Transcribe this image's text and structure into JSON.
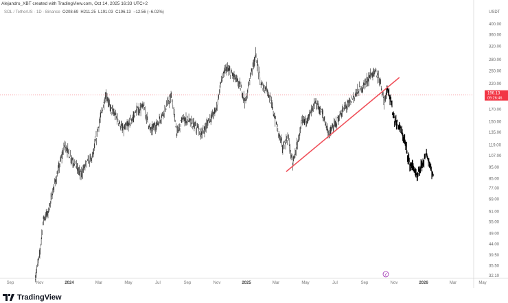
{
  "header": {
    "credit": "Alejandro_XBT created with TradingView.com, Oct 14, 2025 16:33 UTC+2",
    "symbol": "SOL / TetherUS · 1D · Binance",
    "open": "O208.69",
    "high": "H211.25",
    "low": "L191.03",
    "close": "C196.13",
    "change": "−12.56 (−6.02%)"
  },
  "branding": {
    "name": "TradingView",
    "icon": "tradingview-logo-icon"
  },
  "colors": {
    "trendline": "#f0505a",
    "price_tag": "#f23645",
    "bars": "#222222",
    "marker": "#9c27b0"
  },
  "chart_data": {
    "type": "line",
    "title": "",
    "scale": "log",
    "y_unit": "USDT",
    "ylim": [
      32.1,
      400
    ],
    "xlim": [
      "2023-08-10",
      "2026-05-20"
    ],
    "grid": false,
    "y_ticks": [
      "400.00",
      "360.00",
      "320.00",
      "280.00",
      "250.00",
      "220.00",
      "170.00",
      "150.00",
      "135.00",
      "119.00",
      "107.00",
      "95.00",
      "85.00",
      "77.00",
      "69.00",
      "61.00",
      "55.00",
      "49.00",
      "44.00",
      "39.50",
      "35.50",
      "32.10"
    ],
    "x_ticks": [
      {
        "label": "Sep",
        "date": "2023-09-01"
      },
      {
        "label": "Nov",
        "date": "2023-11-01"
      },
      {
        "label": "2024",
        "date": "2024-01-01",
        "year": true
      },
      {
        "label": "Mar",
        "date": "2024-03-01"
      },
      {
        "label": "May",
        "date": "2024-05-01"
      },
      {
        "label": "Jul",
        "date": "2024-07-01"
      },
      {
        "label": "Sep",
        "date": "2024-09-01"
      },
      {
        "label": "Nov",
        "date": "2024-11-01"
      },
      {
        "label": "2025",
        "date": "2025-01-01",
        "year": true
      },
      {
        "label": "Mar",
        "date": "2025-03-01"
      },
      {
        "label": "May",
        "date": "2025-05-01"
      },
      {
        "label": "Jul",
        "date": "2025-07-01"
      },
      {
        "label": "Sep",
        "date": "2025-09-01"
      },
      {
        "label": "Nov",
        "date": "2025-11-01"
      },
      {
        "label": "2026",
        "date": "2026-01-01",
        "year": true
      },
      {
        "label": "Mar",
        "date": "2026-03-01"
      },
      {
        "label": "May",
        "date": "2026-05-01"
      }
    ],
    "current_price": {
      "value": 196.13,
      "label": "196.13",
      "countdown": "09:26:46"
    },
    "trendline": [
      {
        "date": "2025-03-22",
        "price": 91
      },
      {
        "date": "2025-11-12",
        "price": 234
      }
    ],
    "series": [
      {
        "values": [
          [
            "2023-10-22",
            31.5
          ],
          [
            "2023-11-01",
            40
          ],
          [
            "2023-11-08",
            56.5
          ],
          [
            "2023-11-18",
            60.5
          ],
          [
            "2023-12-01",
            80
          ],
          [
            "2023-12-12",
            98
          ],
          [
            "2023-12-22",
            120
          ],
          [
            "2024-01-01",
            108
          ],
          [
            "2024-01-13",
            98
          ],
          [
            "2024-01-25",
            88
          ],
          [
            "2024-02-04",
            98
          ],
          [
            "2024-02-18",
            105
          ],
          [
            "2024-03-02",
            148
          ],
          [
            "2024-03-16",
            201
          ],
          [
            "2024-03-23",
            175
          ],
          [
            "2024-04-06",
            158
          ],
          [
            "2024-04-21",
            138
          ],
          [
            "2024-05-04",
            148
          ],
          [
            "2024-05-19",
            169
          ],
          [
            "2024-06-02",
            175
          ],
          [
            "2024-06-16",
            138
          ],
          [
            "2024-07-01",
            148
          ],
          [
            "2024-07-15",
            169
          ],
          [
            "2024-07-29",
            194
          ],
          [
            "2024-08-10",
            133
          ],
          [
            "2024-08-20",
            153
          ],
          [
            "2024-09-03",
            153
          ],
          [
            "2024-09-17",
            143
          ],
          [
            "2024-10-01",
            133
          ],
          [
            "2024-10-15",
            153
          ],
          [
            "2024-10-30",
            169
          ],
          [
            "2024-11-09",
            223
          ],
          [
            "2024-11-20",
            256
          ],
          [
            "2024-12-04",
            239
          ],
          [
            "2024-12-18",
            216
          ],
          [
            "2024-12-30",
            182
          ],
          [
            "2025-01-09",
            239
          ],
          [
            "2025-01-20",
            294
          ],
          [
            "2025-01-31",
            216
          ],
          [
            "2025-02-14",
            208
          ],
          [
            "2025-02-25",
            169
          ],
          [
            "2025-03-05",
            138
          ],
          [
            "2025-03-15",
            116
          ],
          [
            "2025-03-26",
            129
          ],
          [
            "2025-04-05",
            98
          ],
          [
            "2025-04-13",
            116
          ],
          [
            "2025-04-24",
            148
          ],
          [
            "2025-05-08",
            158
          ],
          [
            "2025-05-22",
            182
          ],
          [
            "2025-06-05",
            164
          ],
          [
            "2025-06-19",
            133
          ],
          [
            "2025-07-03",
            148
          ],
          [
            "2025-07-18",
            169
          ],
          [
            "2025-08-01",
            182
          ],
          [
            "2025-08-15",
            201
          ],
          [
            "2025-08-30",
            216
          ],
          [
            "2025-09-13",
            239
          ],
          [
            "2025-09-24",
            247
          ],
          [
            "2025-10-04",
            223
          ],
          [
            "2025-10-11",
            182
          ],
          [
            "2025-10-18",
            216
          ],
          [
            "2025-10-25",
            182
          ],
          [
            "2025-11-02",
            153
          ],
          [
            "2025-11-12",
            143
          ],
          [
            "2025-11-23",
            124
          ],
          [
            "2025-12-03",
            98
          ],
          [
            "2025-12-11",
            95
          ],
          [
            "2025-12-18",
            85
          ],
          [
            "2025-12-28",
            98
          ],
          [
            "2026-01-07",
            108
          ],
          [
            "2026-01-16",
            95
          ],
          [
            "2026-01-22",
            85
          ]
        ]
      }
    ]
  }
}
